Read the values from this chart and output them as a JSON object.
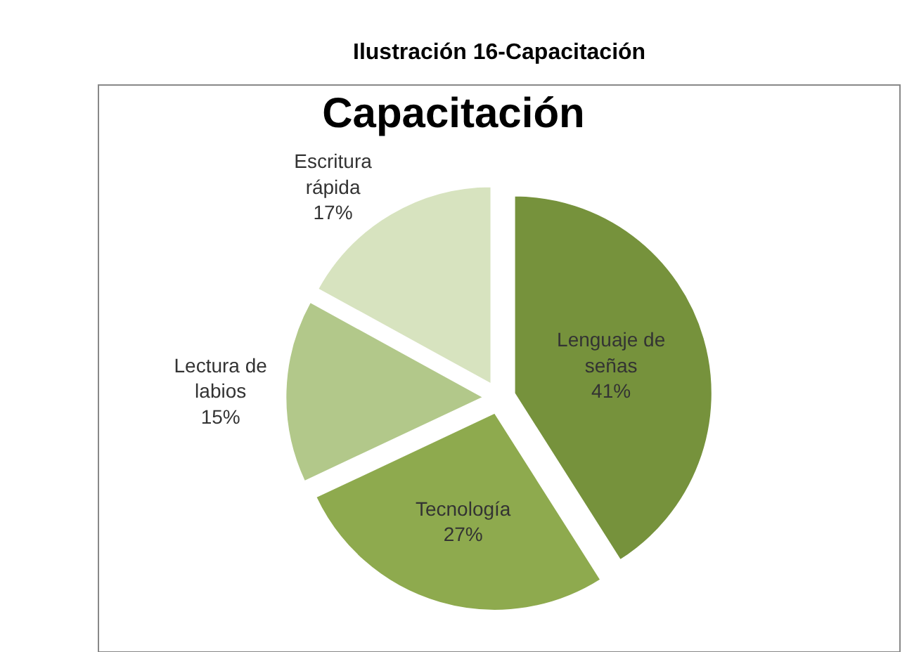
{
  "chart_data": {
    "type": "pie",
    "title": "Capacitación",
    "annotations": [
      "Ilustración 16-Capacitación"
    ],
    "categories": [
      "Lenguaje de señas",
      "Tecnología",
      "Lectura de labios",
      "Escritura rápida"
    ],
    "values": [
      41,
      27,
      15,
      17
    ],
    "colors": [
      "#76923c",
      "#8eaa4e",
      "#b2c88a",
      "#d7e3bf"
    ],
    "value_labels": [
      "41%",
      "27%",
      "15%",
      "17%"
    ],
    "legend": false
  }
}
